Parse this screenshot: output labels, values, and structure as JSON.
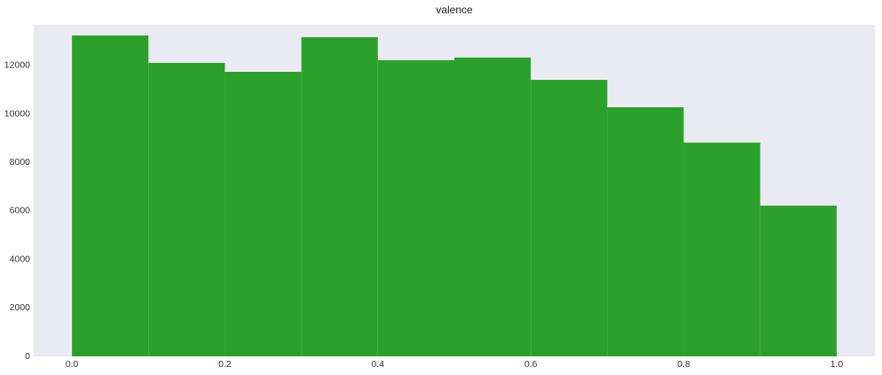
{
  "chart_data": {
    "type": "histogram",
    "title": "valence",
    "bins": [
      0,
      0.1,
      0.2,
      0.3,
      0.4,
      0.5,
      0.6,
      0.7,
      0.8,
      0.9,
      1
    ],
    "values": [
      13240,
      12110,
      11740,
      13170,
      12220,
      12330,
      11410,
      10280,
      8820,
      6220
    ],
    "color": "#2ca02c",
    "background": "#eaeaf2",
    "grid": false,
    "xlim": [
      -0.05,
      1.05
    ],
    "xticks": [
      {
        "value": 0,
        "label": "0.0"
      },
      0.2,
      0.4,
      0.6,
      0.8,
      {
        "value": 1,
        "label": "1.0"
      }
    ],
    "ylim": [
      0,
      13680
    ],
    "yticks": [
      0,
      2000,
      4000,
      6000,
      8000,
      10000,
      12000
    ]
  }
}
